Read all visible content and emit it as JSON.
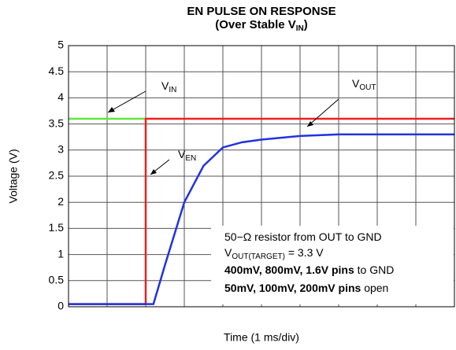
{
  "chart_data": {
    "type": "line",
    "title": "EN PULSE ON RESPONSE",
    "subtitle": {
      "text": "(Over Stable V",
      "sub": "IN",
      "after": ")"
    },
    "y_label": "Voltage (V)",
    "x_label": "Time (1 ms/div)",
    "xlim": [
      0,
      10
    ],
    "xticks": [
      0,
      1,
      2,
      3,
      4,
      5,
      6,
      7,
      8,
      9,
      10
    ],
    "xtick_labels": false,
    "ylim": [
      0,
      5
    ],
    "yticks": [
      0,
      0.5,
      1,
      1.5,
      2,
      2.5,
      3,
      3.5,
      4,
      4.5,
      5
    ],
    "grid": true,
    "series": [
      {
        "label": {
          "text": "V",
          "sub": "IN"
        },
        "color": "#5ee83a",
        "x": [
          0,
          2.0
        ],
        "values": [
          3.6,
          3.6
        ]
      },
      {
        "label": {
          "text": "V",
          "sub": "EN"
        },
        "color": "#ee2020",
        "x": [
          0,
          2.0,
          2.0,
          10
        ],
        "values": [
          0.05,
          0.05,
          3.6,
          3.6
        ]
      },
      {
        "label": {
          "text": "V",
          "sub": "OUT"
        },
        "color": "#2233dd",
        "x": [
          0,
          2.2,
          2.5,
          3,
          3.5,
          4,
          4.5,
          5,
          6,
          7,
          8,
          10
        ],
        "values": [
          0.05,
          0.05,
          0.8,
          2.0,
          2.7,
          3.05,
          3.15,
          3.2,
          3.27,
          3.3,
          3.3,
          3.3
        ]
      }
    ],
    "note": [
      [
        {
          "text": "50−Ω resistor from OUT to GND"
        }
      ],
      [
        {
          "text": "V"
        },
        {
          "text": "OUT(TARGET)",
          "sub": true
        },
        {
          "text": " = 3.3 V"
        }
      ],
      [
        {
          "text": "400mV, 800mV, 1.6V pins",
          "bold": true
        },
        {
          "text": " to GND"
        }
      ],
      [
        {
          "text": "50mV, 100mV, 200mV pins",
          "bold": true
        },
        {
          "text": " open"
        }
      ]
    ]
  }
}
